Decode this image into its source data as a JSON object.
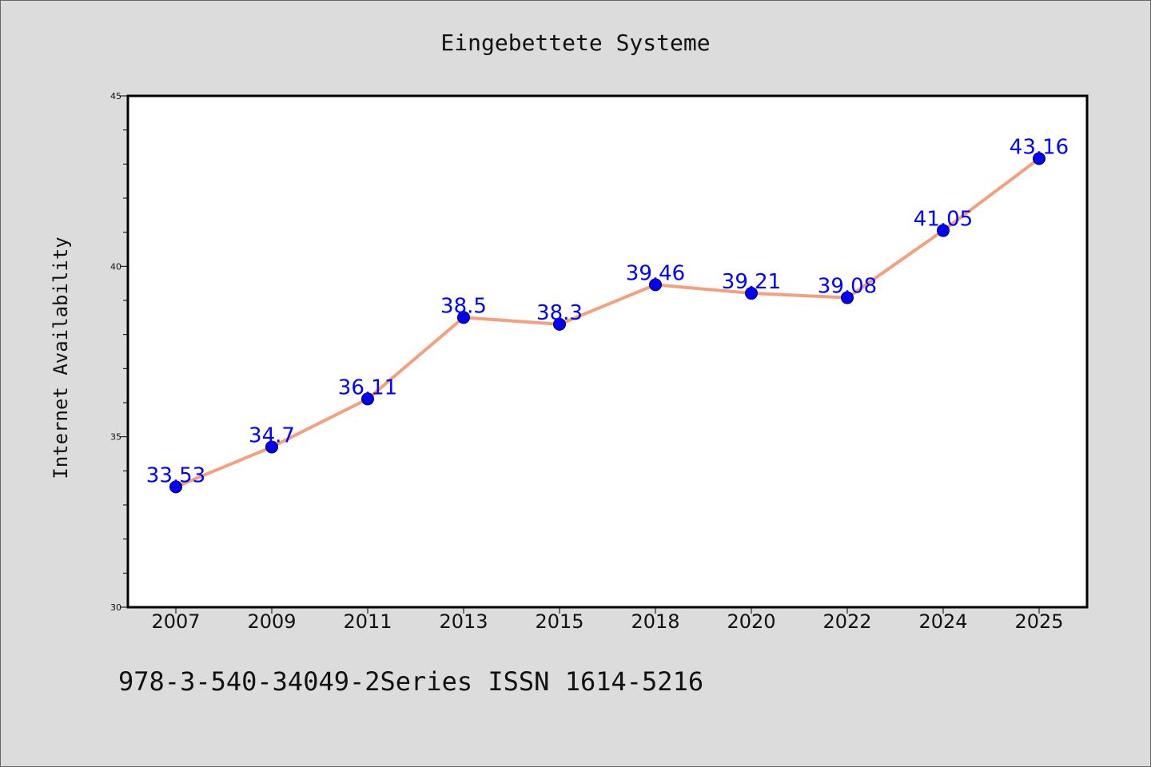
{
  "chart_data": {
    "type": "line",
    "title": "Eingebettete Systeme",
    "xlabel": "",
    "ylabel": "Internet Availability",
    "categories": [
      "2007",
      "2009",
      "2011",
      "2013",
      "2015",
      "2018",
      "2020",
      "2022",
      "2024",
      "2025"
    ],
    "series": [
      {
        "values": [
          33.53,
          34.7,
          36.11,
          38.5,
          38.3,
          39.46,
          39.21,
          39.08,
          41.05,
          43.16
        ]
      }
    ],
    "data_labels": [
      "33.53",
      "34.7",
      "36.11",
      "38.5",
      "38.3",
      "39.46",
      "39.21",
      "39.08",
      "41.05",
      "43.16"
    ],
    "ylim": [
      30,
      45
    ],
    "yticks": [
      30,
      35,
      40,
      45
    ],
    "ytick_labels": [
      "30",
      "35",
      "40",
      "45"
    ],
    "minor_tick_step": 1,
    "grid": false,
    "legend": "none",
    "colors": {
      "line": "#f4a07e",
      "marker": "#0000ff",
      "data_label": "#0000ff",
      "background": "#dcdcdc",
      "plot_background": "#ffffff"
    }
  },
  "footer": {
    "text": "978-3-540-34049-2Series ISSN 1614-5216"
  }
}
